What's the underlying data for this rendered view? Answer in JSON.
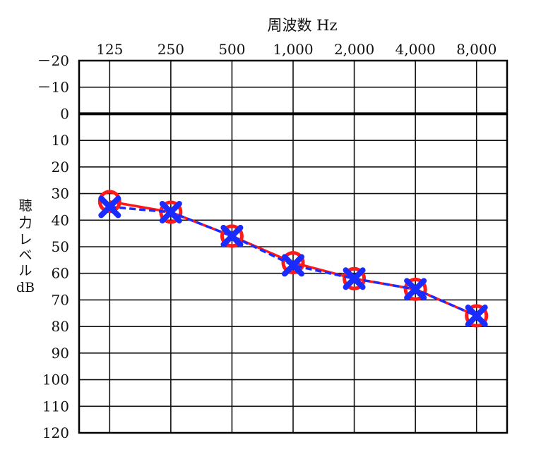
{
  "chart_data": {
    "type": "line",
    "xlabel": "周波数 Hz",
    "ylabel_lines": [
      "聴",
      "力",
      "レ",
      "ベ",
      "ル",
      "dB"
    ],
    "categories": [
      "125",
      "250",
      "500",
      "1,000",
      "2,000",
      "4,000",
      "8,000"
    ],
    "y_ticks": [
      "－20",
      "－10",
      "0",
      "10",
      "20",
      "30",
      "40",
      "50",
      "60",
      "70",
      "80",
      "90",
      "100",
      "110",
      "120"
    ],
    "y_tick_values": [
      -20,
      -10,
      0,
      10,
      20,
      30,
      40,
      50,
      60,
      70,
      80,
      90,
      100,
      110,
      120
    ],
    "ylim": [
      -20,
      120
    ],
    "y_inverted": true,
    "reference_line_value": 0,
    "grid": true,
    "series": [
      {
        "marker": "circle",
        "line_style": "solid",
        "color": "#ff1a1a",
        "values": [
          33,
          37,
          46,
          56,
          62,
          66,
          76
        ]
      },
      {
        "marker": "cross",
        "line_style": "dashed",
        "color": "#1a2bff",
        "values": [
          35,
          37,
          46,
          57,
          62,
          66,
          76
        ]
      }
    ]
  }
}
